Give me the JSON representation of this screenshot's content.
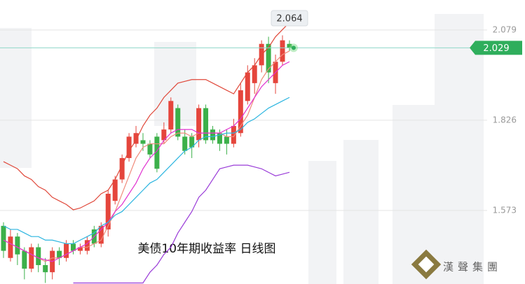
{
  "chart_data": {
    "type": "candlestick",
    "title": "美债10年期收益率  日线图",
    "annotation": "2.064",
    "last_price": 2.029,
    "brand": "漢聲集團",
    "up_color": "#e5453c",
    "down_color": "#3cb04a",
    "ylim": [
      1.367,
      2.163
    ],
    "yticks": [
      2.079,
      1.826,
      1.573
    ],
    "grid": true,
    "open": [
      1.53,
      1.44,
      1.5,
      1.46,
      1.41,
      1.47,
      1.42,
      1.4,
      1.46,
      1.44,
      1.48,
      1.46,
      1.46,
      1.52,
      1.48,
      1.52,
      1.6,
      1.66,
      1.72,
      1.76,
      1.77,
      1.76,
      1.78,
      1.77,
      1.8,
      1.86,
      1.78,
      1.78,
      1.77,
      1.86,
      1.8,
      1.79,
      1.78,
      1.76,
      1.79,
      1.88,
      1.93,
      1.98,
      2.04,
      1.93,
      1.99,
      2.04
    ],
    "high": [
      1.54,
      1.52,
      1.51,
      1.47,
      1.48,
      1.48,
      1.44,
      1.47,
      1.47,
      1.49,
      1.49,
      1.48,
      1.5,
      1.53,
      1.54,
      1.63,
      1.67,
      1.73,
      1.79,
      1.81,
      1.79,
      1.77,
      1.79,
      1.82,
      1.89,
      1.87,
      1.8,
      1.79,
      1.87,
      1.87,
      1.81,
      1.8,
      1.8,
      1.83,
      1.93,
      1.98,
      2.0,
      2.05,
      2.06,
      2.01,
      2.064,
      2.05
    ],
    "low": [
      1.44,
      1.43,
      1.42,
      1.38,
      1.4,
      1.4,
      1.37,
      1.38,
      1.42,
      1.43,
      1.45,
      1.45,
      1.45,
      1.47,
      1.47,
      1.5,
      1.59,
      1.65,
      1.71,
      1.75,
      1.74,
      1.72,
      1.68,
      1.76,
      1.79,
      1.77,
      1.73,
      1.72,
      1.75,
      1.76,
      1.76,
      1.74,
      1.73,
      1.75,
      1.78,
      1.87,
      1.9,
      1.96,
      1.93,
      1.9,
      1.98,
      2.02
    ],
    "close": [
      1.46,
      1.5,
      1.45,
      1.41,
      1.47,
      1.42,
      1.4,
      1.46,
      1.44,
      1.48,
      1.46,
      1.47,
      1.49,
      1.48,
      1.53,
      1.62,
      1.66,
      1.72,
      1.78,
      1.79,
      1.76,
      1.73,
      1.69,
      1.8,
      1.88,
      1.78,
      1.74,
      1.75,
      1.86,
      1.77,
      1.77,
      1.76,
      1.76,
      1.81,
      1.91,
      1.96,
      1.98,
      2.04,
      1.96,
      1.99,
      2.05,
      2.029
    ],
    "series": [
      {
        "color": "#e0483a",
        "values": [
          1.71,
          1.7,
          1.69,
          1.67,
          1.66,
          1.64,
          1.63,
          1.61,
          1.6,
          1.59,
          1.575,
          1.58,
          1.59,
          1.6,
          1.62,
          1.63,
          1.66,
          1.7,
          1.74,
          1.77,
          1.81,
          1.84,
          1.86,
          1.89,
          1.91,
          1.93,
          1.935,
          1.94,
          1.94,
          1.94,
          1.93,
          1.92,
          1.91,
          1.9,
          1.93,
          1.96,
          1.98,
          2.01,
          2.03,
          2.06,
          2.08,
          2.1
        ]
      },
      {
        "color": "#f08a7a",
        "values": [
          1.49,
          1.48,
          1.47,
          1.46,
          1.45,
          1.44,
          1.43,
          1.44,
          1.44,
          1.45,
          1.46,
          1.47,
          1.47,
          1.48,
          1.49,
          1.53,
          1.57,
          1.62,
          1.67,
          1.72,
          1.75,
          1.76,
          1.76,
          1.76,
          1.78,
          1.79,
          1.79,
          1.78,
          1.79,
          1.79,
          1.79,
          1.79,
          1.78,
          1.78,
          1.81,
          1.84,
          1.89,
          1.94,
          1.97,
          1.99,
          2.01,
          2.02
        ]
      },
      {
        "color": "#e030d0",
        "values": [
          1.49,
          1.48,
          1.47,
          1.46,
          1.45,
          1.44,
          1.435,
          1.43,
          1.44,
          1.45,
          1.46,
          1.47,
          1.48,
          1.5,
          1.52,
          1.54,
          1.57,
          1.59,
          1.62,
          1.65,
          1.69,
          1.72,
          1.74,
          1.77,
          1.79,
          1.8,
          1.8,
          1.8,
          1.79,
          1.79,
          1.79,
          1.79,
          1.8,
          1.81,
          1.83,
          1.86,
          1.89,
          1.92,
          1.94,
          1.96,
          1.98,
          1.99
        ]
      },
      {
        "color": "#2bb5e0",
        "values": [
          1.53,
          1.52,
          1.52,
          1.51,
          1.5,
          1.5,
          1.49,
          1.49,
          1.485,
          1.48,
          1.48,
          1.49,
          1.5,
          1.51,
          1.53,
          1.54,
          1.56,
          1.57,
          1.59,
          1.61,
          1.63,
          1.65,
          1.66,
          1.68,
          1.7,
          1.72,
          1.74,
          1.75,
          1.77,
          1.78,
          1.78,
          1.785,
          1.79,
          1.79,
          1.8,
          1.82,
          1.83,
          1.845,
          1.86,
          1.87,
          1.88,
          1.89
        ]
      },
      {
        "color": "#9a3cd8",
        "values": [
          null,
          null,
          null,
          null,
          null,
          null,
          null,
          null,
          null,
          null,
          1.37,
          1.37,
          1.37,
          1.37,
          1.37,
          1.37,
          1.37,
          1.37,
          1.37,
          1.37,
          1.37,
          1.4,
          1.42,
          1.45,
          1.47,
          1.51,
          1.54,
          1.57,
          1.61,
          1.63,
          1.66,
          1.69,
          1.695,
          1.7,
          1.7,
          1.7,
          1.695,
          1.69,
          1.68,
          1.67,
          1.675,
          1.68
        ]
      }
    ]
  }
}
